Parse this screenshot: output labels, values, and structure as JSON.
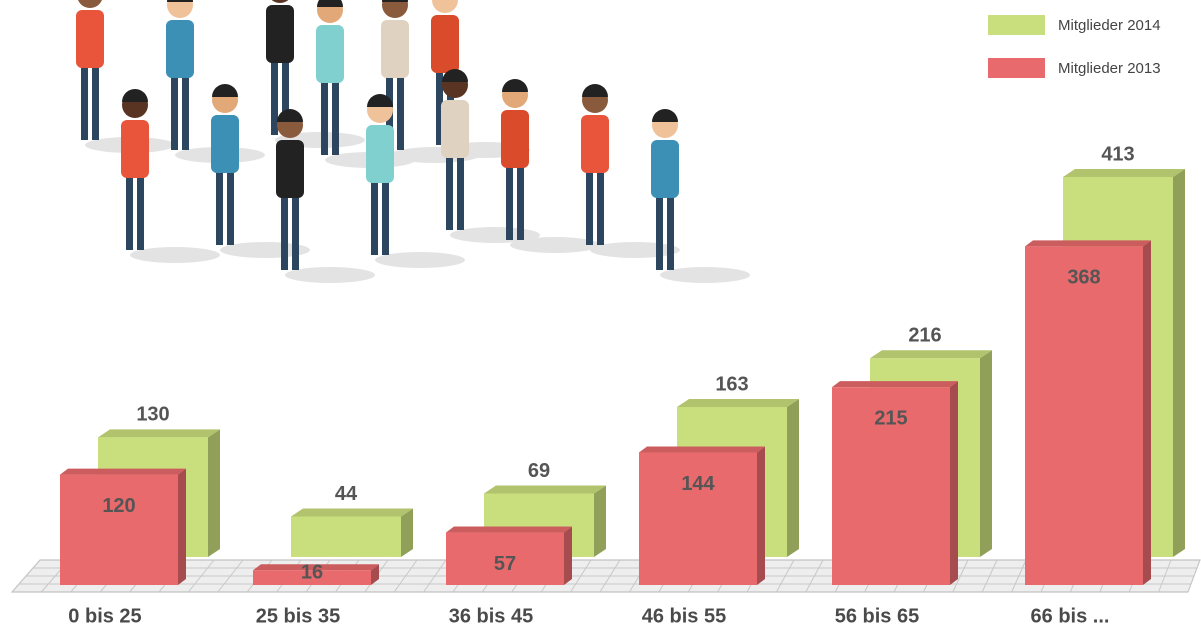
{
  "chart_data": {
    "type": "bar3d",
    "categories": [
      "0 bis 25",
      "25 bis 35",
      "36 bis 45",
      "46 bis 55",
      "56 bis 65",
      "66 bis ..."
    ],
    "series": [
      {
        "name": "Mitglieder 2014",
        "color": "#c9de7c",
        "values": [
          130,
          44,
          69,
          163,
          216,
          413
        ]
      },
      {
        "name": "Mitglieder 2013",
        "color": "#e86a6c",
        "values": [
          120,
          16,
          57,
          144,
          215,
          368
        ]
      }
    ],
    "legend": "top-right"
  }
}
